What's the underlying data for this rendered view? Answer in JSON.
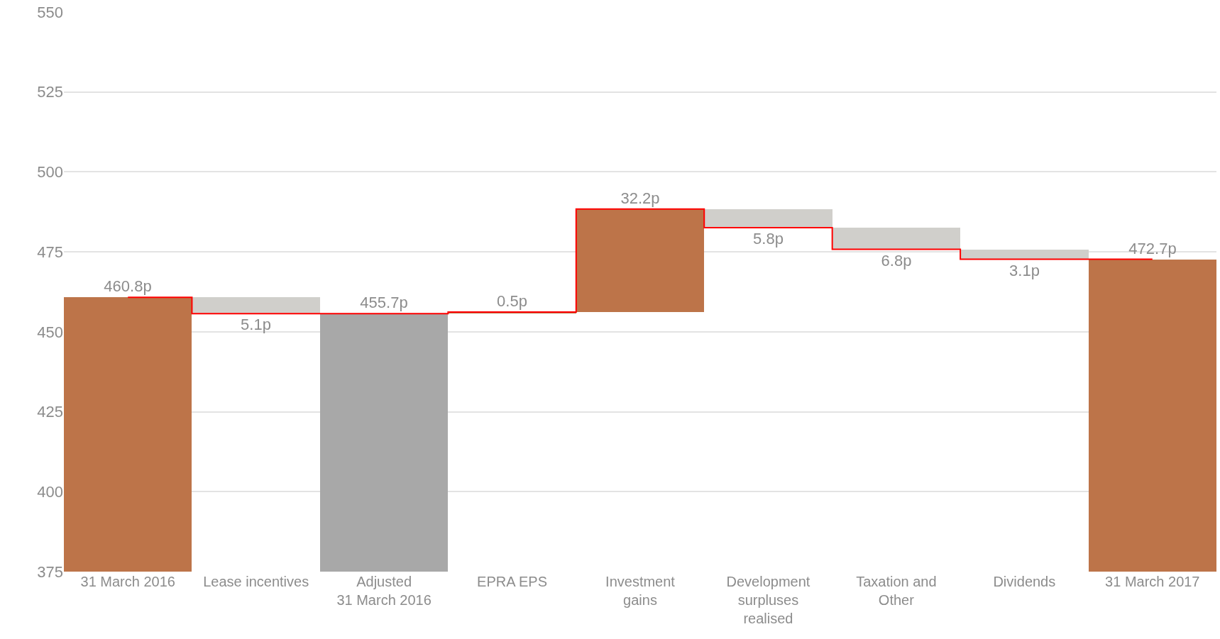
{
  "chart_data": {
    "type": "bar",
    "categories": [
      "31 March 2016",
      "Lease incentives",
      "Adjusted\n31 March 2016",
      "EPRA EPS",
      "Investment\ngains",
      "Development\nsurpluses\nrealised",
      "Taxation and\nOther",
      "Dividends",
      "31 March 2017"
    ],
    "series": [
      {
        "values": [
          460.8,
          -5.1,
          455.7,
          0.5,
          32.2,
          -5.8,
          -6.8,
          -3.1,
          472.7
        ],
        "base": [
          null,
          460.8,
          null,
          455.7,
          456.2,
          488.4,
          482.6,
          475.8,
          null
        ],
        "colors": [
          "#bd7449",
          "#d0cfcb",
          "#a8a8a8",
          "#bd7449",
          "#bd7449",
          "#d0cfcb",
          "#d0cfcb",
          "#d0cfcb",
          "#bd7449"
        ],
        "value_labels": [
          "460.8p",
          "5.1p",
          "455.7p",
          "0.5p",
          "32.2p",
          "5.8p",
          "6.8p",
          "3.1p",
          "472.7p"
        ]
      },
      {
        "type": "step",
        "color": "#ff0000",
        "values": [
          460.8,
          455.7,
          455.7,
          456.2,
          488.4,
          482.6,
          475.8,
          472.7,
          472.7
        ]
      }
    ],
    "ylim": [
      375,
      550
    ],
    "yticks": [
      375,
      400,
      425,
      450,
      475,
      500,
      525,
      550
    ],
    "grid": "y"
  }
}
